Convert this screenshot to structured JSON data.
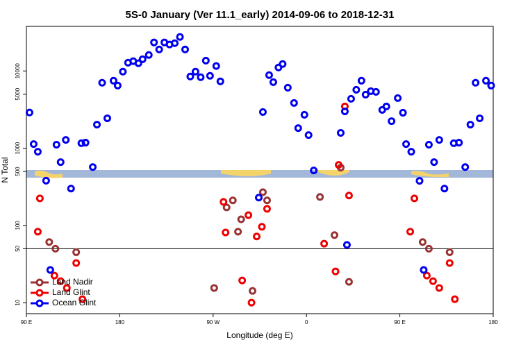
{
  "chart_data": {
    "type": "scatter",
    "title": "5S-0 January (Ver 11.1_early)   2014-09-06 to 2018-12-31",
    "xlabel": "Longitude (deg E)",
    "ylabel": "N Total",
    "xlim": [
      90,
      540
    ],
    "xticks": [
      {
        "value": 90,
        "label": "90 E"
      },
      180,
      {
        "value": 270,
        "label": "90 W"
      },
      {
        "value": 360,
        "label": "0"
      },
      {
        "value": 450,
        "label": "90 E"
      },
      {
        "value": 540,
        "label": "180"
      }
    ],
    "ylim": [
      7.2,
      37800
    ],
    "yticks": [
      10,
      50,
      100,
      500,
      1000,
      5000,
      10000
    ],
    "ylog": true,
    "reference_lines": [
      50
    ],
    "legend": "bottom-left",
    "series": [
      {
        "name": "Land Nadir",
        "color": "#993333",
        "x": [
          112,
          118,
          138,
          271,
          283,
          289,
          294,
          297,
          308,
          318,
          322,
          373,
          387,
          393,
          401,
          472,
          478,
          498
        ],
        "values": [
          61,
          50,
          45,
          15.5,
          171,
          211,
          83,
          120,
          14.2,
          270,
          211,
          234,
          75,
          560,
          18.6,
          61,
          50,
          45
        ]
      },
      {
        "name": "Land Glint",
        "color": "#ee0000",
        "x": [
          101,
          103,
          117,
          123,
          129,
          138,
          144,
          280,
          282,
          298,
          304,
          307,
          312,
          317,
          322,
          391,
          397,
          377,
          388,
          401,
          460,
          464,
          476,
          482,
          488,
          498,
          503
        ],
        "values": [
          83,
          224,
          22.4,
          19,
          15.5,
          32.6,
          11.1,
          202,
          81,
          19.4,
          136,
          10,
          72,
          96,
          164,
          608,
          3470,
          58,
          25.4,
          244,
          83,
          224,
          22.4,
          19,
          15.5,
          32.6,
          11.1
        ]
      },
      {
        "name": "Ocean Glint",
        "color": "#0000ee",
        "x": [
          93,
          97,
          101,
          109,
          119,
          123,
          128,
          133,
          143,
          147,
          154,
          158,
          163,
          168,
          174,
          178,
          183,
          188,
          193,
          198,
          202,
          208,
          213,
          218,
          223,
          228,
          233,
          238,
          243,
          248,
          253,
          258,
          263,
          267,
          273,
          277,
          318,
          324,
          328,
          333,
          337,
          342,
          348,
          352,
          358,
          362,
          367,
          393,
          397,
          403,
          408,
          413,
          417,
          422,
          427,
          433,
          437,
          442,
          448,
          453,
          456,
          461,
          469,
          478,
          483,
          488,
          493,
          502,
          507,
          513,
          518,
          523,
          527,
          533,
          538,
          113,
          314,
          399,
          473
        ],
        "values": [
          2900,
          1130,
          900,
          380,
          1110,
          660,
          1280,
          300,
          1160,
          1180,
          570,
          2020,
          7030,
          2440,
          7480,
          6470,
          9800,
          12800,
          13400,
          12600,
          14200,
          16100,
          23400,
          19000,
          23400,
          22000,
          22900,
          27600,
          19000,
          8470,
          9800,
          8300,
          13600,
          8650,
          11600,
          7330,
          2940,
          8830,
          7170,
          11100,
          12300,
          6080,
          3850,
          1820,
          2710,
          1480,
          515,
          1580,
          3000,
          4360,
          5710,
          7480,
          4940,
          5480,
          5360,
          3130,
          3470,
          2240,
          4450,
          2880,
          1130,
          900,
          378,
          1110,
          660,
          1280,
          300,
          1160,
          1180,
          570,
          2020,
          7030,
          2440,
          7480,
          6470,
          26.5,
          229,
          56,
          26.5
        ]
      }
    ]
  }
}
